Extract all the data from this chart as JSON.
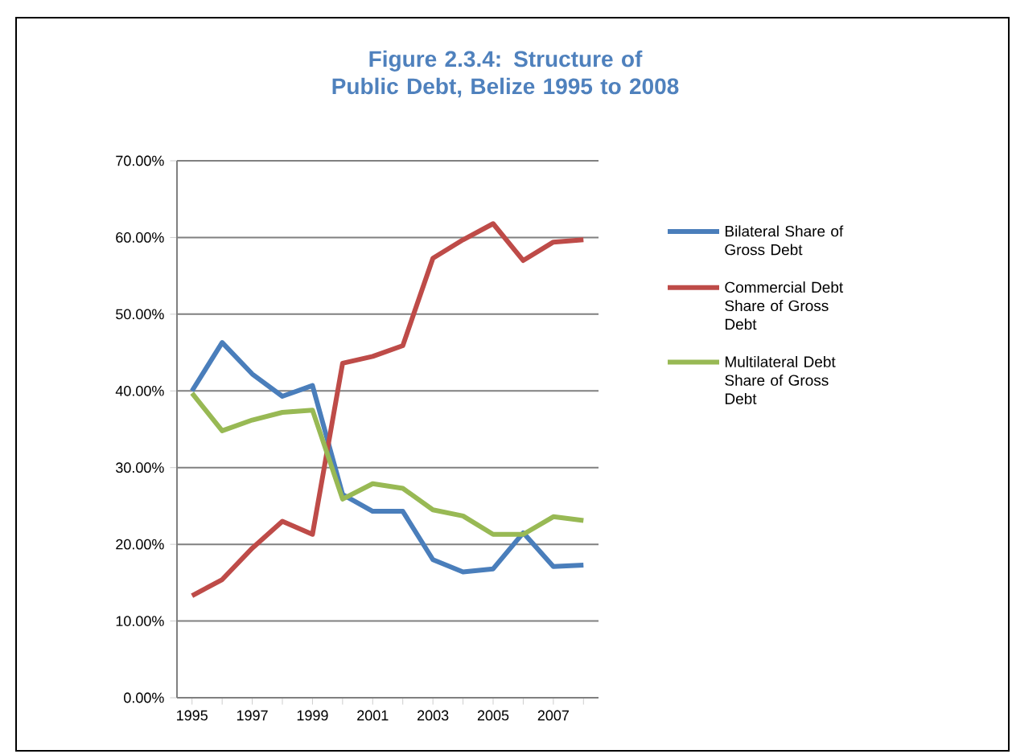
{
  "chart_data": {
    "type": "line",
    "title": "Figure 2.3.4: Structure of Public Debt, Belize 1995 to 2008",
    "categories": [
      "1995",
      null,
      "1997",
      null,
      "1999",
      null,
      "2001",
      null,
      "2003",
      null,
      "2005",
      null,
      "2007",
      null
    ],
    "series": [
      {
        "name": "Bilateral Share of Gross Debt",
        "color": "#4a7ebb",
        "values": [
          40.0,
          46.3,
          42.2,
          39.3,
          40.7,
          26.5,
          24.3,
          24.3,
          18.0,
          16.4,
          16.8,
          21.5,
          17.1,
          17.3
        ]
      },
      {
        "name": "Commercial Debt Share of Gross Debt",
        "color": "#be4b48",
        "values": [
          13.3,
          15.4,
          19.5,
          23.0,
          21.3,
          43.6,
          44.5,
          45.9,
          57.3,
          59.7,
          61.8,
          57.0,
          59.4,
          59.7
        ]
      },
      {
        "name": "Multilateral Debt Share of Gross Debt",
        "color": "#98b954",
        "values": [
          39.7,
          34.8,
          36.2,
          37.2,
          37.5,
          25.9,
          27.9,
          27.3,
          24.5,
          23.7,
          21.3,
          21.3,
          23.6,
          23.1
        ]
      }
    ],
    "ylim": [
      0,
      70
    ],
    "yticks": [
      {
        "value": 0,
        "label": "0.00%"
      },
      {
        "value": 10,
        "label": "10.00%"
      },
      {
        "value": 20,
        "label": "20.00%"
      },
      {
        "value": 30,
        "label": "30.00%"
      },
      {
        "value": 40,
        "label": "40.00%"
      },
      {
        "value": 50,
        "label": "50.00%"
      },
      {
        "value": 60,
        "label": "60.00%"
      },
      {
        "value": 70,
        "label": "70.00%"
      }
    ],
    "grid": "y",
    "legend": "right"
  }
}
